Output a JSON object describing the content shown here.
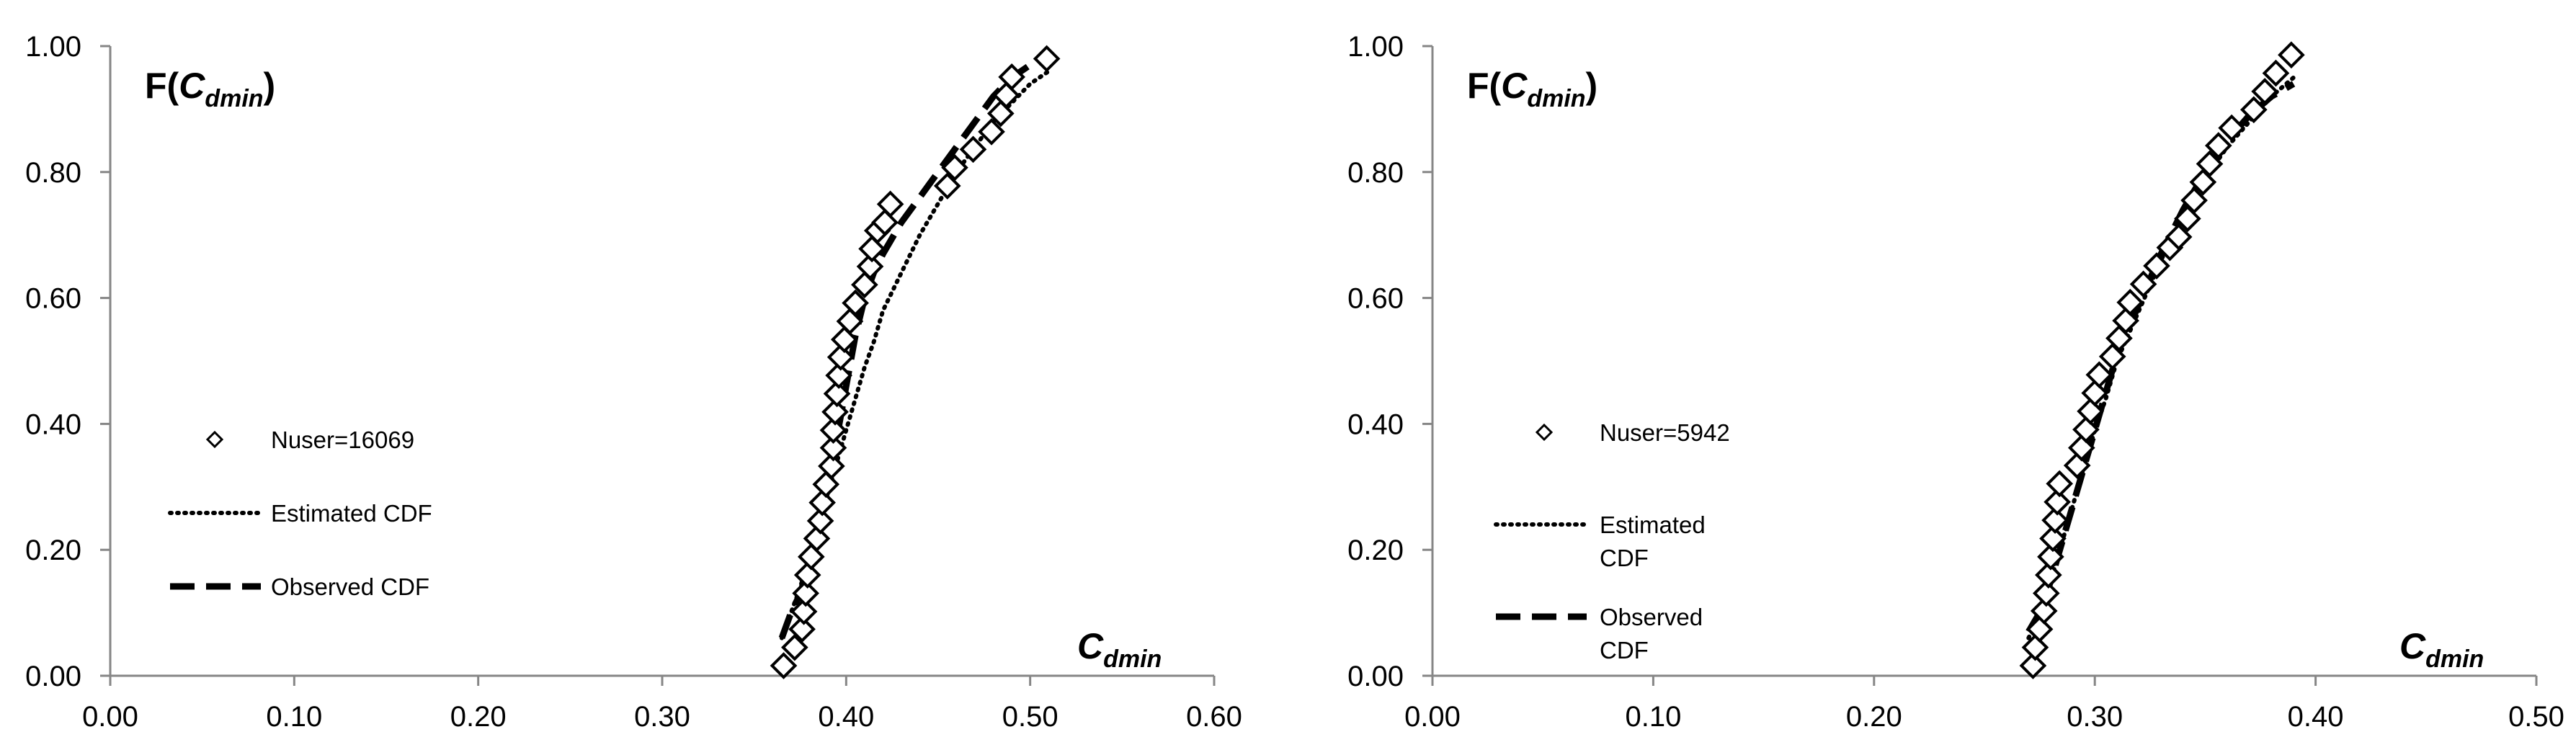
{
  "chart_data": [
    {
      "type": "scatter",
      "y_title_prefix": "F(",
      "y_title_var": "C",
      "y_title_sub": "dmin",
      "y_title_suffix": ")",
      "x_title_var": "C",
      "x_title_sub": "dmin",
      "xlim": [
        0,
        0.6
      ],
      "ylim": [
        0,
        1
      ],
      "x_ticks": [
        "0.00",
        "0.10",
        "0.20",
        "0.30",
        "0.40",
        "0.50",
        "0.60"
      ],
      "y_ticks": [
        "0.00",
        "0.20",
        "0.40",
        "0.60",
        "0.80",
        "1.00"
      ],
      "legend": [
        "Nuser=16069",
        "Estimated CDF",
        "Observed CDF"
      ],
      "grid": false,
      "points": [
        [
          0.366,
          0.016
        ],
        [
          0.372,
          0.045
        ],
        [
          0.376,
          0.074
        ],
        [
          0.377,
          0.102
        ],
        [
          0.378,
          0.131
        ],
        [
          0.379,
          0.16
        ],
        [
          0.381,
          0.189
        ],
        [
          0.384,
          0.218
        ],
        [
          0.386,
          0.246
        ],
        [
          0.387,
          0.275
        ],
        [
          0.389,
          0.304
        ],
        [
          0.392,
          0.333
        ],
        [
          0.393,
          0.362
        ],
        [
          0.393,
          0.39
        ],
        [
          0.394,
          0.419
        ],
        [
          0.395,
          0.448
        ],
        [
          0.396,
          0.477
        ],
        [
          0.397,
          0.506
        ],
        [
          0.399,
          0.534
        ],
        [
          0.402,
          0.563
        ],
        [
          0.405,
          0.592
        ],
        [
          0.41,
          0.621
        ],
        [
          0.413,
          0.65
        ],
        [
          0.414,
          0.678
        ],
        [
          0.417,
          0.707
        ],
        [
          0.421,
          0.72
        ],
        [
          0.424,
          0.749
        ],
        [
          0.455,
          0.778
        ],
        [
          0.459,
          0.807
        ],
        [
          0.469,
          0.836
        ],
        [
          0.479,
          0.864
        ],
        [
          0.484,
          0.893
        ],
        [
          0.487,
          0.922
        ],
        [
          0.49,
          0.951
        ],
        [
          0.509,
          0.98
        ]
      ],
      "estimated_cdf": [
        [
          0.365,
          0.06
        ],
        [
          0.37,
          0.1
        ],
        [
          0.375,
          0.14
        ],
        [
          0.38,
          0.19
        ],
        [
          0.385,
          0.24
        ],
        [
          0.39,
          0.29
        ],
        [
          0.395,
          0.34
        ],
        [
          0.4,
          0.39
        ],
        [
          0.405,
          0.44
        ],
        [
          0.41,
          0.49
        ],
        [
          0.415,
          0.53
        ],
        [
          0.42,
          0.58
        ],
        [
          0.43,
          0.64
        ],
        [
          0.44,
          0.7
        ],
        [
          0.45,
          0.75
        ],
        [
          0.46,
          0.8
        ],
        [
          0.47,
          0.84
        ],
        [
          0.48,
          0.88
        ],
        [
          0.49,
          0.91
        ],
        [
          0.5,
          0.94
        ],
        [
          0.51,
          0.96
        ]
      ],
      "observed_cdf": [
        [
          0.365,
          0.06
        ],
        [
          0.37,
          0.1
        ],
        [
          0.375,
          0.13
        ],
        [
          0.38,
          0.18
        ],
        [
          0.385,
          0.23
        ],
        [
          0.39,
          0.3
        ],
        [
          0.395,
          0.38
        ],
        [
          0.4,
          0.46
        ],
        [
          0.405,
          0.54
        ],
        [
          0.41,
          0.6
        ],
        [
          0.415,
          0.64
        ],
        [
          0.42,
          0.67
        ],
        [
          0.43,
          0.72
        ],
        [
          0.44,
          0.76
        ],
        [
          0.45,
          0.8
        ],
        [
          0.46,
          0.84
        ],
        [
          0.47,
          0.88
        ],
        [
          0.48,
          0.92
        ],
        [
          0.49,
          0.95
        ],
        [
          0.5,
          0.97
        ],
        [
          0.51,
          0.98
        ]
      ]
    },
    {
      "type": "scatter",
      "y_title_prefix": "F(",
      "y_title_var": "C",
      "y_title_sub": "dmin",
      "y_title_suffix": ")",
      "x_title_var": "C",
      "x_title_sub": "dmin",
      "xlim": [
        0,
        0.5
      ],
      "ylim": [
        0,
        1
      ],
      "x_ticks": [
        "0.00",
        "0.10",
        "0.20",
        "0.30",
        "0.40",
        "0.50"
      ],
      "y_ticks": [
        "0.00",
        "0.20",
        "0.40",
        "0.60",
        "0.80",
        "1.00"
      ],
      "legend": [
        "Nuser=5942",
        "Estimated",
        "CDF",
        "Observed",
        "CDF"
      ],
      "grid": false,
      "points": [
        [
          0.272,
          0.016
        ],
        [
          0.273,
          0.045
        ],
        [
          0.275,
          0.074
        ],
        [
          0.277,
          0.103
        ],
        [
          0.278,
          0.131
        ],
        [
          0.279,
          0.16
        ],
        [
          0.28,
          0.189
        ],
        [
          0.281,
          0.218
        ],
        [
          0.282,
          0.247
        ],
        [
          0.283,
          0.276
        ],
        [
          0.284,
          0.305
        ],
        [
          0.292,
          0.334
        ],
        [
          0.294,
          0.362
        ],
        [
          0.296,
          0.391
        ],
        [
          0.298,
          0.42
        ],
        [
          0.3,
          0.449
        ],
        [
          0.302,
          0.478
        ],
        [
          0.308,
          0.507
        ],
        [
          0.311,
          0.536
        ],
        [
          0.314,
          0.564
        ],
        [
          0.316,
          0.593
        ],
        [
          0.322,
          0.622
        ],
        [
          0.328,
          0.651
        ],
        [
          0.334,
          0.68
        ],
        [
          0.338,
          0.697
        ],
        [
          0.342,
          0.726
        ],
        [
          0.345,
          0.755
        ],
        [
          0.349,
          0.784
        ],
        [
          0.352,
          0.813
        ],
        [
          0.356,
          0.842
        ],
        [
          0.362,
          0.87
        ],
        [
          0.372,
          0.899
        ],
        [
          0.377,
          0.928
        ],
        [
          0.382,
          0.957
        ],
        [
          0.389,
          0.986
        ]
      ],
      "estimated_cdf": [
        [
          0.27,
          0.06
        ],
        [
          0.275,
          0.1
        ],
        [
          0.28,
          0.15
        ],
        [
          0.285,
          0.21
        ],
        [
          0.29,
          0.27
        ],
        [
          0.295,
          0.33
        ],
        [
          0.3,
          0.39
        ],
        [
          0.305,
          0.44
        ],
        [
          0.31,
          0.5
        ],
        [
          0.32,
          0.58
        ],
        [
          0.33,
          0.66
        ],
        [
          0.34,
          0.73
        ],
        [
          0.35,
          0.79
        ],
        [
          0.36,
          0.84
        ],
        [
          0.37,
          0.88
        ],
        [
          0.38,
          0.92
        ],
        [
          0.39,
          0.95
        ]
      ],
      "observed_cdf": [
        [
          0.27,
          0.07
        ],
        [
          0.275,
          0.1
        ],
        [
          0.28,
          0.15
        ],
        [
          0.285,
          0.21
        ],
        [
          0.29,
          0.27
        ],
        [
          0.295,
          0.33
        ],
        [
          0.3,
          0.39
        ],
        [
          0.305,
          0.45
        ],
        [
          0.31,
          0.51
        ],
        [
          0.32,
          0.59
        ],
        [
          0.33,
          0.67
        ],
        [
          0.34,
          0.74
        ],
        [
          0.35,
          0.8
        ],
        [
          0.36,
          0.85
        ],
        [
          0.37,
          0.89
        ],
        [
          0.38,
          0.92
        ],
        [
          0.39,
          0.94
        ]
      ]
    }
  ]
}
